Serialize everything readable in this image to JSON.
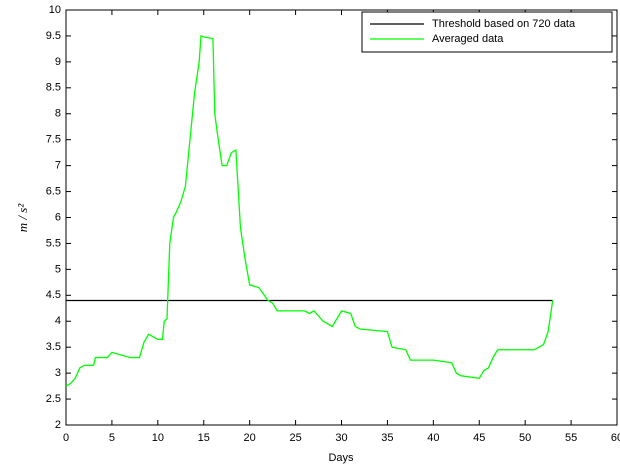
{
  "chart_data": {
    "type": "line",
    "xlabel": "Days",
    "ylabel": "m / s²",
    "xlim": [
      0,
      60
    ],
    "xticks": [
      0,
      5,
      10,
      15,
      20,
      25,
      30,
      35,
      40,
      45,
      50,
      55,
      60
    ],
    "ylim": [
      2,
      10
    ],
    "yticks": [
      2,
      2.5,
      3,
      3.5,
      4,
      4.5,
      5,
      5.5,
      6,
      6.5,
      7,
      7.5,
      8,
      8.5,
      9,
      9.5,
      10
    ],
    "legend": "upper right",
    "series": [
      {
        "name": "Threshold based on 720 data",
        "color": "#000000",
        "x": [
          0,
          53
        ],
        "values": [
          4.4,
          4.4
        ]
      },
      {
        "name": "Averaged data",
        "color": "#00ff00",
        "x": [
          0,
          0.5,
          1,
          1.5,
          2,
          3,
          3.2,
          4,
          4.5,
          5,
          6,
          7,
          8,
          8.5,
          9,
          9.5,
          10,
          10.5,
          10.7,
          11,
          11.3,
          11.7,
          12,
          12.5,
          13,
          13.5,
          14,
          14.5,
          14.7,
          15,
          16,
          16.2,
          16.5,
          17,
          17.5,
          18,
          18.5,
          19,
          19.5,
          20,
          21,
          22,
          22.5,
          23,
          25,
          26,
          26.5,
          27,
          28,
          29,
          30,
          31,
          31.5,
          32,
          35,
          35.5,
          37,
          37.5,
          40,
          42,
          42.5,
          43,
          45,
          45.5,
          46,
          46.5,
          47,
          47.5,
          51,
          51.5,
          52,
          52.5,
          53
        ],
        "values": [
          2.75,
          2.8,
          2.9,
          3.1,
          3.15,
          3.15,
          3.3,
          3.3,
          3.3,
          3.4,
          3.35,
          3.3,
          3.3,
          3.6,
          3.75,
          3.7,
          3.65,
          3.65,
          4.0,
          4.05,
          5.5,
          6.0,
          6.1,
          6.3,
          6.6,
          7.5,
          8.4,
          9.0,
          9.5,
          9.48,
          9.45,
          8.0,
          7.6,
          7.0,
          7.0,
          7.25,
          7.3,
          5.8,
          5.2,
          4.7,
          4.65,
          4.4,
          4.35,
          4.2,
          4.2,
          4.2,
          4.15,
          4.2,
          4.0,
          3.9,
          4.2,
          4.15,
          3.9,
          3.85,
          3.8,
          3.5,
          3.45,
          3.25,
          3.25,
          3.2,
          3.0,
          2.95,
          2.9,
          3.05,
          3.1,
          3.3,
          3.45,
          3.45,
          3.45,
          3.5,
          3.55,
          3.8,
          4.4
        ]
      }
    ]
  }
}
